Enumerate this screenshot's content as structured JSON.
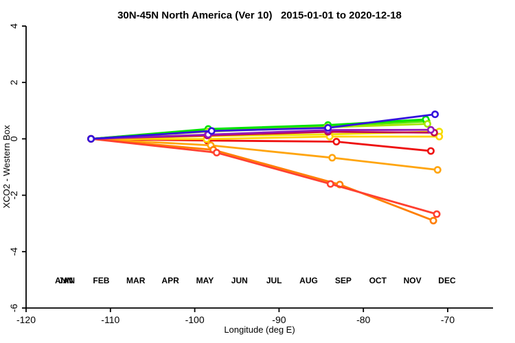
{
  "chart_data": {
    "type": "line",
    "title": "30N-45N North America (Ver 10)   2015-01-01 to 2020-12-18",
    "xlabel": "Longitude (deg E)",
    "ylabel": "XCO2 - Western Box",
    "xlim": [
      -120,
      -64.7
    ],
    "ylim": [
      -6,
      4
    ],
    "xticks": [
      -120,
      -110,
      -100,
      -90,
      -80,
      -70
    ],
    "yticks": [
      4,
      2,
      0,
      -2,
      -4,
      -6
    ],
    "grid": false,
    "marker": "open-circle",
    "legend_position": "bottom-inside",
    "series": [
      {
        "name": "JAN",
        "color": "#00E300",
        "legend_slot": 0,
        "legend_dx": 0,
        "x": [
          -112.3,
          -98.4,
          -84.2,
          -72.6
        ],
        "y": [
          0,
          0.33,
          0.47,
          0.66
        ]
      },
      {
        "name": "FEB",
        "color": "#4FE600",
        "legend_slot": 1,
        "legend_dx": 0,
        "x": [
          -112.3,
          -98.4,
          -84.2,
          -72.5
        ],
        "y": [
          0,
          0.31,
          0.45,
          0.62
        ]
      },
      {
        "name": "ANN",
        "color": "#00E300",
        "legend_slot": 0,
        "legend_dx": -4,
        "x": [
          -112.3,
          -98.4,
          -84.2,
          -72.6
        ],
        "y": [
          0,
          0.35,
          0.49,
          0.69
        ]
      },
      {
        "name": "MAR",
        "color": "#A6E600",
        "legend_slot": 2,
        "legend_dx": 0,
        "x": [
          -112.3,
          -98.4,
          -84.3,
          -72.4
        ],
        "y": [
          0,
          0.26,
          0.41,
          0.53
        ]
      },
      {
        "name": "SEP",
        "color": "#EE1111",
        "legend_slot": 8,
        "legend_dx": 0,
        "x": [
          -112.3,
          -98.5,
          -83.2,
          -72.0
        ],
        "y": [
          0,
          -0.06,
          -0.1,
          -0.43
        ]
      },
      {
        "name": "APR",
        "color": "#EFE300",
        "legend_slot": 3,
        "legend_dx": 0,
        "x": [
          -112.3,
          -98.4,
          -84.0,
          -71.0
        ],
        "y": [
          0,
          0.1,
          0.16,
          0.26
        ]
      },
      {
        "name": "MAY",
        "color": "#FFD400",
        "legend_slot": 4,
        "legend_dx": 0,
        "x": [
          -112.3,
          -98.6,
          -84.0,
          -71.0
        ],
        "y": [
          0,
          -0.01,
          0.08,
          0.08
        ]
      },
      {
        "name": "JUN",
        "color": "#FFA50F",
        "legend_slot": 5,
        "legend_dx": 0,
        "x": [
          -112.3,
          -98.1,
          -83.7,
          -71.2
        ],
        "y": [
          0,
          -0.23,
          -0.67,
          -1.1
        ]
      },
      {
        "name": "JUL",
        "color": "#FF7F00",
        "legend_slot": 6,
        "legend_dx": 0,
        "x": [
          -112.3,
          -97.8,
          -82.8,
          -71.7
        ],
        "y": [
          0,
          -0.39,
          -1.62,
          -2.9
        ]
      },
      {
        "name": "AUG",
        "color": "#FF4030",
        "legend_slot": 7,
        "legend_dx": 0,
        "x": [
          -112.3,
          -97.4,
          -83.9,
          -71.3
        ],
        "y": [
          0,
          -0.49,
          -1.6,
          -2.67
        ]
      },
      {
        "name": "OCT",
        "color": "#C20851",
        "legend_slot": 9,
        "legend_dx": 0,
        "x": [
          -112.3,
          -98.5,
          -84.2,
          -71.6
        ],
        "y": [
          0,
          0.12,
          0.25,
          0.22
        ]
      },
      {
        "name": "NOV",
        "color": "#9318BB",
        "legend_slot": 10,
        "legend_dx": 0,
        "x": [
          -112.3,
          -98.4,
          -84.2,
          -72.0
        ],
        "y": [
          0,
          0.15,
          0.31,
          0.32
        ]
      },
      {
        "name": "DEC",
        "color": "#3311DD",
        "legend_slot": 11,
        "legend_dx": 0,
        "x": [
          -112.3,
          -98.0,
          -84.2,
          -71.5
        ],
        "y": [
          0,
          0.28,
          0.39,
          0.87
        ]
      }
    ]
  }
}
